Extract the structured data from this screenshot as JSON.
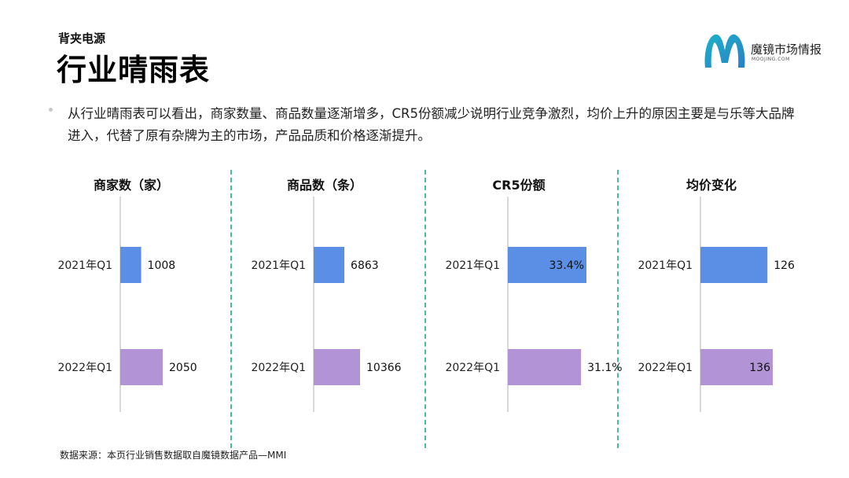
{
  "header": {
    "subtitle": "背夹电源",
    "title": "行业晴雨表"
  },
  "logo": {
    "cn": "魔镜市场情报",
    "en": "MOOJING.COM",
    "colors": [
      "#1bb3c9",
      "#2a7fc6"
    ]
  },
  "intro": "从行业晴雨表可以看出，商家数量、商品数量逐渐增多，CR5份额减少说明行业竞争激烈，均价上升的原因主要是与乐等大品牌进入，代替了原有杂牌为主的市场，产品品质和价格逐渐提升。",
  "source": "数据来源：本页行业销售数据取自魔镜数据产品—MMI",
  "colors": {
    "bar_2021": "#5b8fe6",
    "bar_2022": "#b294d6",
    "divider": "#4dbb8f",
    "axis": "#cccccc"
  },
  "chart_data": [
    {
      "type": "bar",
      "orientation": "horizontal",
      "title": "商家数（家）",
      "categories": [
        "2021年Q1",
        "2022年Q1"
      ],
      "values": [
        1008,
        2050
      ],
      "labels": [
        "1008",
        "2050"
      ],
      "label_position": [
        "outside",
        "outside"
      ]
    },
    {
      "type": "bar",
      "orientation": "horizontal",
      "title": "商品数（条）",
      "categories": [
        "2021年Q1",
        "2022年Q1"
      ],
      "values": [
        6863,
        10366
      ],
      "labels": [
        "6863",
        "10366"
      ],
      "label_position": [
        "outside",
        "outside"
      ]
    },
    {
      "type": "bar",
      "orientation": "horizontal",
      "title": "CR5份额",
      "categories": [
        "2021年Q1",
        "2022年Q1"
      ],
      "values": [
        33.4,
        31.1
      ],
      "labels": [
        "33.4%",
        "31.1%"
      ],
      "label_position": [
        "inside",
        "outside"
      ]
    },
    {
      "type": "bar",
      "orientation": "horizontal",
      "title": "均价变化",
      "categories": [
        "2021年Q1",
        "2022年Q1"
      ],
      "values": [
        126,
        136
      ],
      "labels": [
        "126",
        "136"
      ],
      "label_position": [
        "outside",
        "inside"
      ]
    }
  ]
}
